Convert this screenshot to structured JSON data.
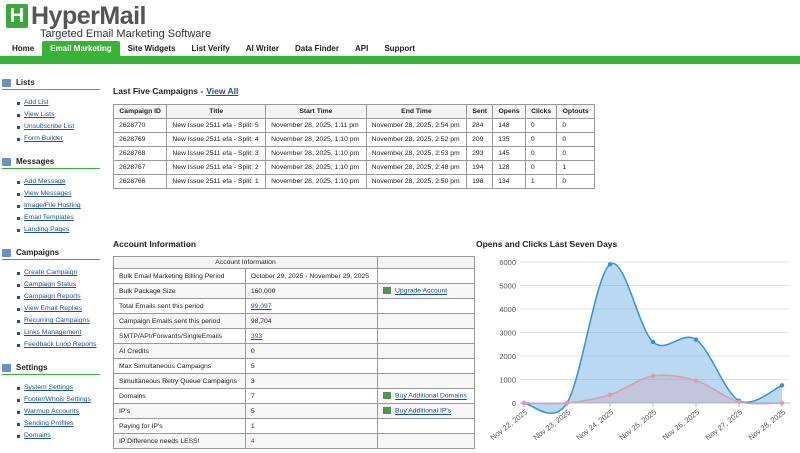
{
  "header": {
    "logo": "HyperMail",
    "tagline": "Targeted Email Marketing Software"
  },
  "nav": [
    "Home",
    "Email Marketing",
    "Site Widgets",
    "List Verify",
    "AI Writer",
    "Data Finder",
    "API",
    "Support"
  ],
  "sidebar": [
    {
      "title": "Lists",
      "links": [
        "Add List",
        "View Lists",
        "Unsubscribe List",
        "Form Builder"
      ]
    },
    {
      "title": "Messages",
      "links": [
        "Add Message",
        "View Messages",
        "Image/File Hosting",
        "Email Templates",
        "Landing Pages"
      ]
    },
    {
      "title": "Campaigns",
      "links": [
        "Create Campaign",
        "Campaign Status",
        "Campaign Reports",
        "View Email Replies",
        "Recurring Campaigns",
        "Links Management",
        "Feedback Loop Reports"
      ]
    },
    {
      "title": "Settings",
      "links": [
        "System Settings",
        "Footer/Whois Settings",
        "Warmup Accounts",
        "Sending Profiles",
        "Domains"
      ]
    }
  ],
  "campaigns": {
    "title": "Last Five Campaigns -",
    "link": "View All",
    "columns": [
      "Campaign ID",
      "Title",
      "Start Time",
      "End Time",
      "Sent",
      "Opens",
      "Clicks",
      "Optouts"
    ],
    "rows": [
      [
        "2628770",
        "New Issue 2511 efa - Split: 5",
        "November 28, 2025, 1:11 pm",
        "November 28, 2025, 2:54 pm",
        "284",
        "148",
        "0",
        "0"
      ],
      [
        "2628769",
        "New Issue 2511 efa - Split: 4",
        "November 28, 2025, 1:10 pm",
        "November 28, 2025, 2:52 pm",
        "209",
        "135",
        "0",
        "0"
      ],
      [
        "2628768",
        "New Issue 2511 efa - Split: 3",
        "November 28, 2025, 1:10 pm",
        "November 28, 2025, 2:53 pm",
        "293",
        "145",
        "0",
        "0"
      ],
      [
        "2628767",
        "New Issue 2511 efa - Split: 2",
        "November 28, 2025, 1:10 pm",
        "November 28, 2025, 2:48 pm",
        "194",
        "128",
        "0",
        "1"
      ],
      [
        "2628766",
        "New Issue 2511 efa - Split: 1",
        "November 28, 2025, 1:10 pm",
        "November 28, 2025, 2:50 pm",
        "198",
        "134",
        "1",
        "0"
      ]
    ]
  },
  "account": {
    "title": "Account Information",
    "table_header": "Account Information",
    "rows": [
      {
        "label": "Bulk Email Marketing Billing Period",
        "value": "October 29, 2025 - November 29, 2025"
      },
      {
        "label": "Bulk Package Size",
        "value": "160,000",
        "action": "Upgrade Account"
      },
      {
        "label": "Total Emails sent this period",
        "link": "99,097"
      },
      {
        "label": "Campaign Emails sent this period",
        "value": "98,704"
      },
      {
        "label": "SMTP/API/Forwards/SingleEmails",
        "link": "393"
      },
      {
        "label": "AI Credits",
        "value": "0"
      },
      {
        "label": "Max Simultaneous Campaigns",
        "value": "5"
      },
      {
        "label": "Simultaneous Retry Queue Campaigns",
        "value": "3"
      },
      {
        "label": "Domains",
        "value": "7",
        "action": "Buy Additional Domains"
      },
      {
        "label": "IP's",
        "value": "5",
        "action": "Buy Additional IP's"
      },
      {
        "label": "Paying for IP's",
        "value": "1"
      },
      {
        "label": "IP Difference needs LESS!",
        "alert": "4"
      }
    ]
  },
  "chart_data": {
    "type": "area",
    "title": "Opens and Clicks Last Seven Days",
    "categories": [
      "Nov 22, 2025",
      "Nov 23, 2025",
      "Nov 24, 2025",
      "Nov 25, 2025",
      "Nov 26, 2025",
      "Nov 27, 2025",
      "Nov 28, 2025"
    ],
    "series": [
      {
        "name": "Opens",
        "color": "#3592d8",
        "values": [
          0,
          0,
          5900,
          2600,
          2700,
          100,
          750
        ]
      },
      {
        "name": "Clicks",
        "color": "#d4a0b4",
        "values": [
          0,
          0,
          350,
          1150,
          950,
          50,
          0
        ]
      }
    ],
    "ylim": [
      0,
      6000
    ],
    "yticks": [
      0,
      1000,
      2000,
      3000,
      4000,
      5000,
      6000
    ],
    "grid": true
  }
}
